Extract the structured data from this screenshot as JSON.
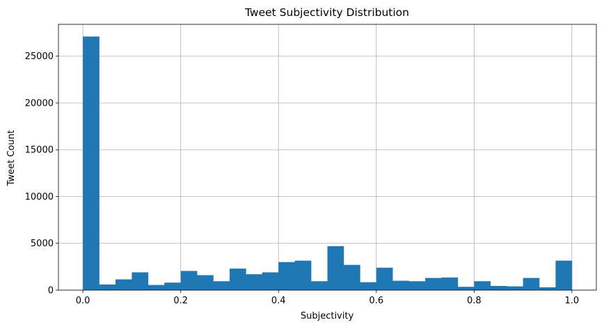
{
  "chart_data": {
    "type": "bar",
    "title": "Tweet Subjectivity Distribution",
    "xlabel": "Subjectivity",
    "ylabel": "Tweet Count",
    "bins": 30,
    "bin_range": [
      0,
      1
    ],
    "counts": [
      27100,
      600,
      1150,
      1900,
      550,
      800,
      2050,
      1600,
      950,
      2300,
      1700,
      1900,
      3000,
      3150,
      950,
      4700,
      2700,
      850,
      2400,
      1000,
      950,
      1300,
      1350,
      350,
      950,
      450,
      400,
      1300,
      300,
      3150
    ],
    "xlim": [
      -0.05,
      1.05
    ],
    "ylim": [
      0,
      28400
    ],
    "xticks": [
      0,
      0.2,
      0.4,
      0.6,
      0.8,
      1.0
    ],
    "xtick_labels": [
      "0.0",
      "0.2",
      "0.4",
      "0.6",
      "0.8",
      "1.0"
    ],
    "yticks": [
      0,
      5000,
      10000,
      15000,
      20000,
      25000
    ],
    "ytick_labels": [
      "0",
      "5000",
      "10000",
      "15000",
      "20000",
      "25000"
    ],
    "grid": true,
    "bar_color": "#1f77b4",
    "grid_color": "#b0b0b0"
  }
}
